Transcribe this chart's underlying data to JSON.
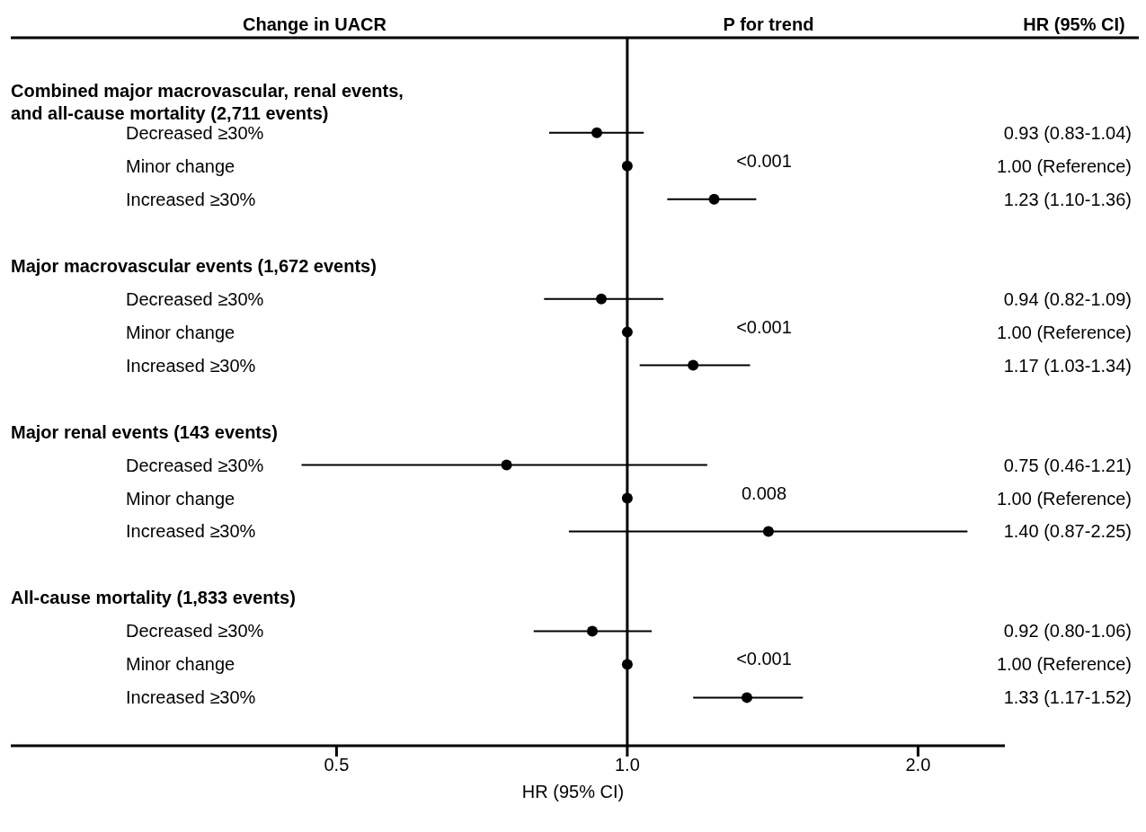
{
  "chart_data": {
    "type": "scatter",
    "ylabel": "Change in UACR",
    "xlabel": "HR (95% CI)",
    "categories": [
      "Combined major macrovascular, renal events, and all-cause mortality (2,711 events)",
      "Decreased ≥30%",
      "Minor change",
      "Increased ≥30%",
      null,
      "Major macrovascular events (1,672 events)",
      "Decreased ≥30%",
      "Minor change",
      "Increased ≥30%",
      null,
      "Major renal events (143 events)",
      "Decreased ≥30%",
      "Minor change",
      "Increased ≥30%",
      null,
      "All-cause mortality (1,833 events)",
      "Decreased ≥30%",
      "Minor change",
      "Increased ≥30%"
    ],
    "values": [
      null,
      0.93,
      1.0,
      1.23,
      null,
      null,
      0.94,
      1.0,
      1.17,
      null,
      null,
      0.75,
      1.0,
      1.4,
      null,
      null,
      0.92,
      1.0,
      1.33
    ],
    "errors": [
      null,
      [
        0.83,
        1.04
      ],
      null,
      [
        1.1,
        1.36
      ],
      null,
      null,
      [
        0.82,
        1.09
      ],
      null,
      [
        1.03,
        1.34
      ],
      null,
      null,
      [
        0.46,
        1.21
      ],
      null,
      [
        0.87,
        2.25
      ],
      null,
      null,
      [
        0.8,
        1.06
      ],
      null,
      [
        1.17,
        1.52
      ]
    ],
    "value_labels": [
      null,
      "0.93 (0.83-1.04)",
      "1.00 (Reference)",
      "1.23 (1.10-1.36)",
      null,
      null,
      "0.94 (0.82-1.09)",
      "1.00 (Reference)",
      "1.17 (1.03-1.34)",
      null,
      null,
      "0.75 (0.46-1.21)",
      "1.00 (Reference)",
      "1.40 (0.87-2.25)",
      null,
      null,
      "0.92 (0.80-1.06)",
      "1.00 (Reference)",
      "1.33 (1.17-1.52)"
    ],
    "color": "#000000",
    "marker": "circle",
    "log": "x",
    "orientation": "horizontal",
    "xlim": [
      0.23,
      2.46
    ],
    "xticks": [
      {
        "value": 0.5,
        "label": "0.5"
      },
      {
        "value": 1,
        "label": "1.0"
      },
      {
        "value": 2,
        "label": "2.0"
      }
    ],
    "ref_lines": [
      {
        "axis": "x",
        "value": 1
      }
    ],
    "annotations": [
      "P for trend",
      "HR (95% CI)",
      "<0.001",
      "<0.001",
      "0.008",
      "<0.001"
    ]
  }
}
